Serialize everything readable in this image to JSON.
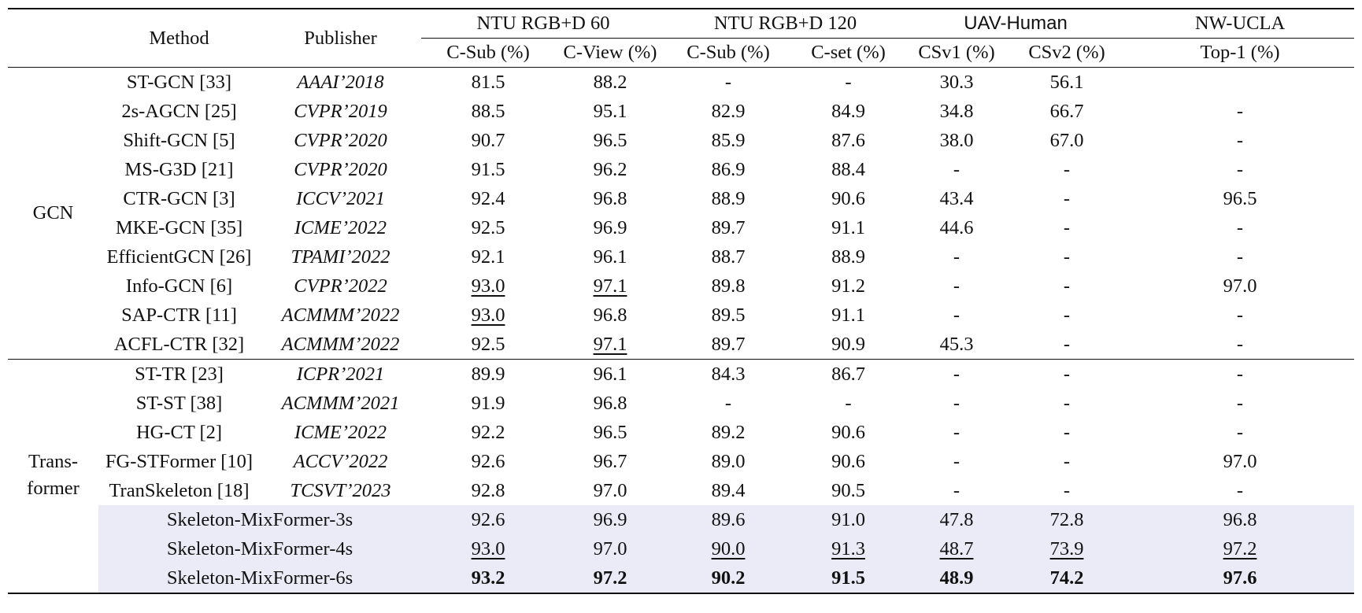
{
  "header": {
    "method": "Method",
    "publisher": "Publisher",
    "groups": [
      "NTU RGB+D 60",
      "NTU RGB+D 120",
      "UAV-Human",
      "NW-UCLA"
    ],
    "subcols": [
      "C-Sub (%)",
      "C-View (%)",
      "C-Sub (%)",
      "C-set (%)",
      "CSv1 (%)",
      "CSv2 (%)",
      "Top-1 (%)"
    ]
  },
  "categories": {
    "gcn": "GCN",
    "transformer_line1": "Trans-",
    "transformer_line2": "former"
  },
  "gcn_rows": [
    {
      "method": "ST-GCN [33]",
      "pub": "AAAI’2018",
      "v": [
        "81.5",
        "88.2",
        "-",
        "-",
        "30.3",
        "56.1",
        ""
      ]
    },
    {
      "method": "2s-AGCN [25]",
      "pub": "CVPR’2019",
      "v": [
        "88.5",
        "95.1",
        "82.9",
        "84.9",
        "34.8",
        "66.7",
        "-"
      ]
    },
    {
      "method": "Shift-GCN [5]",
      "pub": "CVPR’2020",
      "v": [
        "90.7",
        "96.5",
        "85.9",
        "87.6",
        "38.0",
        "67.0",
        "-"
      ]
    },
    {
      "method": "MS-G3D [21]",
      "pub": "CVPR’2020",
      "v": [
        "91.5",
        "96.2",
        "86.9",
        "88.4",
        "-",
        "-",
        "-"
      ]
    },
    {
      "method": "CTR-GCN [3]",
      "pub": "ICCV’2021",
      "v": [
        "92.4",
        "96.8",
        "88.9",
        "90.6",
        "43.4",
        "-",
        "96.5"
      ]
    },
    {
      "method": "MKE-GCN [35]",
      "pub": "ICME’2022",
      "v": [
        "92.5",
        "96.9",
        "89.7",
        "91.1",
        "44.6",
        "-",
        "-"
      ]
    },
    {
      "method": "EfficientGCN [26]",
      "pub": "TPAMI’2022",
      "v": [
        "92.1",
        "96.1",
        "88.7",
        "88.9",
        "-",
        "-",
        "-"
      ]
    },
    {
      "method": "Info-GCN [6]",
      "pub": "CVPR’2022",
      "v": [
        "93.0",
        "97.1",
        "89.8",
        "91.2",
        "-",
        "-",
        "97.0"
      ]
    },
    {
      "method": "SAP-CTR [11]",
      "pub": "ACMMM’2022",
      "v": [
        "93.0",
        "96.8",
        "89.5",
        "91.1",
        "-",
        "-",
        "-"
      ]
    },
    {
      "method": "ACFL-CTR [32]",
      "pub": "ACMMM’2022",
      "v": [
        "92.5",
        "97.1",
        "89.7",
        "90.9",
        "45.3",
        "-",
        "-"
      ]
    }
  ],
  "transformer_rows": [
    {
      "method": "ST-TR [23]",
      "pub": "ICPR’2021",
      "v": [
        "89.9",
        "96.1",
        "84.3",
        "86.7",
        "-",
        "-",
        "-"
      ]
    },
    {
      "method": "ST-ST [38]",
      "pub": "ACMMM’2021",
      "v": [
        "91.9",
        "96.8",
        "-",
        "-",
        "-",
        "-",
        "-"
      ]
    },
    {
      "method": "HG-CT [2]",
      "pub": "ICME’2022",
      "v": [
        "92.2",
        "96.5",
        "89.2",
        "90.6",
        "-",
        "-",
        "-"
      ]
    },
    {
      "method": "FG-STFormer [10]",
      "pub": "ACCV’2022",
      "v": [
        "92.6",
        "96.7",
        "89.0",
        "90.6",
        "-",
        "-",
        "97.0"
      ]
    },
    {
      "method": "TranSkeleton [18]",
      "pub": "TCSVT’2023",
      "v": [
        "92.8",
        "97.0",
        "89.4",
        "90.5",
        "-",
        "-",
        "-"
      ]
    }
  ],
  "ours_rows": [
    {
      "method": "Skeleton-MixFormer-3s",
      "v": [
        "92.6",
        "96.9",
        "89.6",
        "91.0",
        "47.8",
        "72.8",
        "96.8"
      ]
    },
    {
      "method": "Skeleton-MixFormer-4s",
      "v": [
        "93.0",
        "97.0",
        "90.0",
        "91.3",
        "48.7",
        "73.9",
        "97.2"
      ]
    },
    {
      "method": "Skeleton-MixFormer-6s",
      "v": [
        "93.2",
        "97.2",
        "90.2",
        "91.5",
        "48.9",
        "74.2",
        "97.6"
      ]
    }
  ]
}
